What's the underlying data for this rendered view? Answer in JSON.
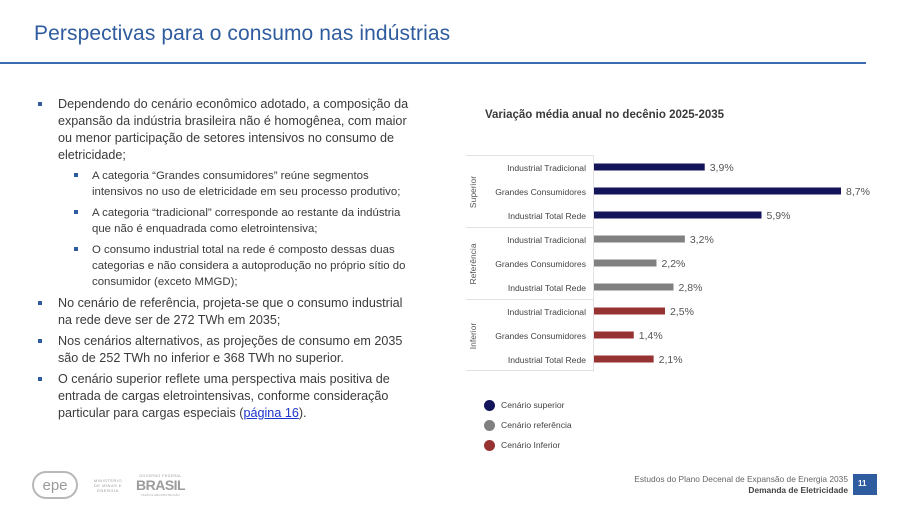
{
  "header": {
    "title": "Perspectivas para o consumo nas indústrias"
  },
  "bullets": [
    {
      "level": 1,
      "text": "Dependendo do cenário econômico adotado, a composição da expansão da indústria brasileira não é homogênea, com maior ou menor participação de setores intensivos no consumo de eletricidade;"
    },
    {
      "level": 2,
      "text": "A categoria “Grandes consumidores” reúne segmentos intensivos no uso de eletricidade em seu processo produtivo;"
    },
    {
      "level": 2,
      "text": "A categoria “tradicional” corresponde ao restante da indústria que não é enquadrada como eletrointensiva;"
    },
    {
      "level": 2,
      "text": "O consumo industrial total na rede é composto dessas duas categorias e não considera a autoprodução no próprio sítio do consumidor (exceto MMGD);"
    },
    {
      "level": 1,
      "text": "No cenário de referência, projeta-se que o consumo industrial na rede deve ser de 272 TWh em 2035;"
    },
    {
      "level": 1,
      "text": "Nos cenários alternativos, as projeções de consumo em 2035 são de 252 TWh no inferior e 368 TWh no superior."
    },
    {
      "level": 1,
      "text_before": "O cenário superior reflete uma perspectiva mais positiva de entrada de cargas eletrointensivas, conforme consideração particular para cargas especiais (",
      "link": "página 16",
      "text_after": ")."
    }
  ],
  "chart_data": {
    "type": "bar",
    "orientation": "horizontal",
    "title": "Variação média anual no decênio 2025-2035",
    "xlabel": "",
    "ylabel": "",
    "unit": "%",
    "xlim": [
      0,
      8.7
    ],
    "grid": false,
    "legend_position": "bottom-left",
    "groups": [
      {
        "name": "Superior",
        "color": "#14145a",
        "categories": [
          "Industrial Tradicional",
          "Grandes Consumidores",
          "Industrial Total Rede"
        ],
        "values": [
          3.9,
          8.7,
          5.9
        ],
        "labels": [
          "3,9%",
          "8,7%",
          "5,9%"
        ]
      },
      {
        "name": "Referência",
        "color": "#808080",
        "categories": [
          "Industrial Tradicional",
          "Grandes Consumidores",
          "Industrial Total Rede"
        ],
        "values": [
          3.2,
          2.2,
          2.8
        ],
        "labels": [
          "3,2%",
          "2,2%",
          "2,8%"
        ]
      },
      {
        "name": "Inferior",
        "color": "#963232",
        "categories": [
          "Industrial Tradicional",
          "Grandes Consumidores",
          "Industrial Total Rede"
        ],
        "values": [
          2.5,
          1.4,
          2.1
        ],
        "labels": [
          "2,5%",
          "1,4%",
          "2,1%"
        ]
      }
    ],
    "legend": [
      {
        "label": "Cenário superior",
        "color": "#14145a"
      },
      {
        "label": "Cenário referência",
        "color": "#808080"
      },
      {
        "label": "Cenário Inferior",
        "color": "#963232"
      }
    ]
  },
  "footer": {
    "logos": {
      "epe": "epe",
      "ministerio": "MINISTÉRIO DE MINAS E ENERGIA",
      "gov_top": "GOVERNO FEDERAL",
      "gov_brasil": "BRASIL",
      "gov_sub": "UNIÃO E RECONSTRUÇÃO"
    },
    "line1": "Estudos do Plano Decenal de Expansão de Energia 2035",
    "line2": "Demanda de Eletricidade",
    "page_number": "11"
  }
}
